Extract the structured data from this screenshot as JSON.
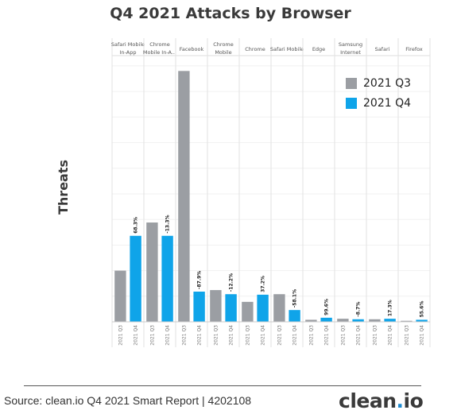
{
  "chart_data": {
    "type": "bar",
    "title": "Q4 2021 Attacks by Browser",
    "ylabel": "Threats",
    "xlabel": "",
    "categories": [
      "Safari Mobile In-App",
      "Chrome Mobile In-A...",
      "Facebook",
      "Chrome Mobile",
      "Chrome",
      "Safari Mobile",
      "Edge",
      "Samsung Internet",
      "Safari",
      "Firefox"
    ],
    "category_labels": [
      [
        "Safari Mobile",
        "In-App"
      ],
      [
        "Chrome",
        "Mobile In-A..."
      ],
      [
        "Facebook"
      ],
      [
        "Chrome",
        "Mobile"
      ],
      [
        "Chrome"
      ],
      [
        "Safari Mobile"
      ],
      [
        "Edge"
      ],
      [
        "Samsung",
        "Internet"
      ],
      [
        "Safari"
      ],
      [
        "Firefox"
      ]
    ],
    "series": [
      {
        "name": "2021 Q3",
        "color": "#9b9ea3",
        "values": [
          100,
          194,
          490,
          62,
          39,
          54,
          4,
          6,
          5,
          2
        ],
        "tick_label": "2021 Q3"
      },
      {
        "name": "2021 Q4",
        "color": "#0fa4e9",
        "values": [
          168,
          168,
          59,
          54,
          53,
          23,
          8,
          5,
          6,
          4
        ],
        "tick_label": "2021 Q4"
      }
    ],
    "data_labels": [
      "68.3%",
      "-13.3%",
      "-87.9%",
      "-12.2%",
      "37.2%",
      "-58.1%",
      "99.6%",
      "-8.7%",
      "17.3%",
      "55.6%"
    ],
    "ylim": [
      0,
      520
    ],
    "grid": true,
    "legend": "top-right"
  },
  "footer": {
    "source": "Source: clean.io Q4 2021 Smart Report | 4202108",
    "logo_a": "clean",
    "logo_dot": ".",
    "logo_b": "io"
  }
}
